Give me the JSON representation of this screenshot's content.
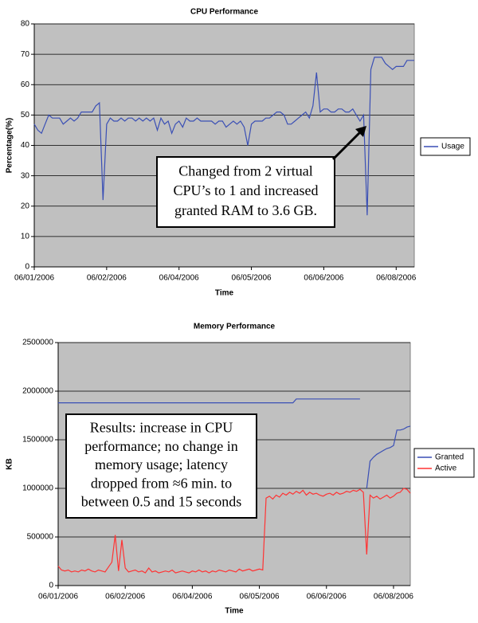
{
  "chart_data": [
    {
      "type": "line",
      "title": "CPU Performance",
      "xlabel": "Time",
      "ylabel": "Percentage(%)",
      "categories": [
        "06/01/2006",
        null,
        null,
        null,
        null,
        null,
        null,
        null,
        null,
        null,
        null,
        null,
        null,
        null,
        null,
        null,
        null,
        null,
        null,
        null,
        "06/02/2006",
        null,
        null,
        null,
        null,
        null,
        null,
        null,
        null,
        null,
        null,
        null,
        null,
        null,
        null,
        null,
        null,
        null,
        null,
        null,
        "06/04/2006",
        null,
        null,
        null,
        null,
        null,
        null,
        null,
        null,
        null,
        null,
        null,
        null,
        null,
        null,
        null,
        null,
        null,
        null,
        null,
        "06/05/2006",
        null,
        null,
        null,
        null,
        null,
        null,
        null,
        null,
        null,
        null,
        null,
        null,
        null,
        null,
        null,
        null,
        null,
        null,
        null,
        "06/06/2006",
        null,
        null,
        null,
        null,
        null,
        null,
        null,
        null,
        null,
        null,
        null,
        null,
        null,
        null,
        null,
        null,
        null,
        null,
        null,
        "06/08/2006",
        null,
        null,
        null,
        null,
        null
      ],
      "series": [
        {
          "name": "Usage",
          "color": "#3a4fb5",
          "values": [
            47,
            45,
            44,
            47,
            50,
            49,
            49,
            49,
            47,
            48,
            49,
            48,
            49,
            51,
            51,
            51,
            51,
            53,
            54,
            22,
            47,
            49,
            48,
            48,
            49,
            48,
            49,
            49,
            48,
            49,
            48,
            49,
            48,
            49,
            45,
            49,
            47,
            48,
            44,
            47,
            48,
            46,
            49,
            48,
            48,
            49,
            48,
            48,
            48,
            48,
            47,
            48,
            48,
            46,
            47,
            48,
            47,
            48,
            46,
            40,
            47,
            48,
            48,
            48,
            49,
            49,
            50,
            51,
            51,
            50,
            47,
            47,
            48,
            49,
            50,
            51,
            49,
            53,
            64,
            51,
            52,
            52,
            51,
            51,
            52,
            52,
            51,
            51,
            52,
            50,
            48,
            50,
            17,
            65,
            69,
            69,
            69,
            67,
            66,
            65,
            66,
            66,
            66,
            68,
            68,
            68
          ]
        }
      ],
      "ylim": [
        0,
        80
      ],
      "yticks": [
        0,
        10,
        20,
        30,
        40,
        50,
        60,
        70,
        80
      ],
      "grid": true,
      "legend": "right",
      "annotation": [
        "Changed from 2 virtual",
        "CPU’s to 1 and increased",
        "granted RAM to 3.6 GB."
      ]
    },
    {
      "type": "line",
      "title": "Memory Performance",
      "xlabel": "Time",
      "ylabel": "KB",
      "categories": [
        "06/01/2006",
        null,
        null,
        null,
        null,
        null,
        null,
        null,
        null,
        null,
        null,
        null,
        null,
        null,
        null,
        null,
        null,
        null,
        null,
        null,
        "06/02/2006",
        null,
        null,
        null,
        null,
        null,
        null,
        null,
        null,
        null,
        null,
        null,
        null,
        null,
        null,
        null,
        null,
        null,
        null,
        null,
        "06/04/2006",
        null,
        null,
        null,
        null,
        null,
        null,
        null,
        null,
        null,
        null,
        null,
        null,
        null,
        null,
        null,
        null,
        null,
        null,
        null,
        "06/05/2006",
        null,
        null,
        null,
        null,
        null,
        null,
        null,
        null,
        null,
        null,
        null,
        null,
        null,
        null,
        null,
        null,
        null,
        null,
        null,
        "06/06/2006",
        null,
        null,
        null,
        null,
        null,
        null,
        null,
        null,
        null,
        null,
        null,
        null,
        null,
        null,
        null,
        null,
        null,
        null,
        null,
        "06/08/2006",
        null,
        null,
        null,
        null,
        null
      ],
      "series": [
        {
          "name": "Granted",
          "color": "#3a4fb5",
          "values": [
            1880000,
            1880000,
            1880000,
            1880000,
            1880000,
            1880000,
            1880000,
            1880000,
            1880000,
            1880000,
            1880000,
            1880000,
            1880000,
            1880000,
            1880000,
            1880000,
            1880000,
            1880000,
            1880000,
            1880000,
            1880000,
            1880000,
            1880000,
            1880000,
            1880000,
            1880000,
            1880000,
            1880000,
            1880000,
            1880000,
            1880000,
            1880000,
            1880000,
            1880000,
            1880000,
            1880000,
            1880000,
            1880000,
            1880000,
            1880000,
            1880000,
            1880000,
            1880000,
            1880000,
            1880000,
            1880000,
            1880000,
            1880000,
            1880000,
            1880000,
            1880000,
            1880000,
            1880000,
            1880000,
            1880000,
            1880000,
            1880000,
            1880000,
            1880000,
            1880000,
            1880000,
            1880000,
            1880000,
            1880000,
            1880000,
            1880000,
            1880000,
            1880000,
            1880000,
            1880000,
            1880000,
            1920000,
            1920000,
            1920000,
            1920000,
            1920000,
            1920000,
            1920000,
            1920000,
            1920000,
            1920000,
            1920000,
            1920000,
            1920000,
            1920000,
            1920000,
            1920000,
            1920000,
            1920000,
            1920000,
            1920000,
            null,
            1000000,
            1280000,
            1320000,
            1350000,
            1370000,
            1390000,
            1410000,
            1420000,
            1440000,
            1600000,
            1600000,
            1610000,
            1630000,
            1640000
          ]
        },
        {
          "name": "Active",
          "color": "#ff3333",
          "values": [
            200000,
            160000,
            150000,
            160000,
            140000,
            150000,
            140000,
            160000,
            150000,
            170000,
            150000,
            140000,
            160000,
            150000,
            140000,
            190000,
            240000,
            520000,
            150000,
            470000,
            180000,
            140000,
            150000,
            160000,
            140000,
            150000,
            130000,
            180000,
            140000,
            150000,
            130000,
            140000,
            150000,
            140000,
            160000,
            130000,
            140000,
            150000,
            140000,
            130000,
            150000,
            140000,
            160000,
            140000,
            150000,
            130000,
            150000,
            140000,
            160000,
            150000,
            140000,
            160000,
            150000,
            140000,
            170000,
            150000,
            160000,
            170000,
            150000,
            160000,
            170000,
            160000,
            900000,
            920000,
            890000,
            930000,
            910000,
            950000,
            930000,
            960000,
            940000,
            970000,
            950000,
            980000,
            930000,
            960000,
            940000,
            950000,
            930000,
            920000,
            940000,
            950000,
            930000,
            960000,
            940000,
            950000,
            970000,
            960000,
            980000,
            970000,
            990000,
            960000,
            320000,
            930000,
            900000,
            920000,
            890000,
            910000,
            930000,
            900000,
            920000,
            950000,
            960000,
            1000000,
            990000,
            950000
          ]
        }
      ],
      "ylim": [
        0,
        2500000
      ],
      "yticks": [
        0,
        500000,
        1000000,
        1500000,
        2000000,
        2500000
      ],
      "grid": true,
      "legend": "right",
      "annotation": [
        "Results: increase in CPU",
        "performance; no change in",
        "memory usage; latency",
        "dropped from ≈6 min. to",
        "between 0.5 and 15 seconds"
      ]
    }
  ]
}
